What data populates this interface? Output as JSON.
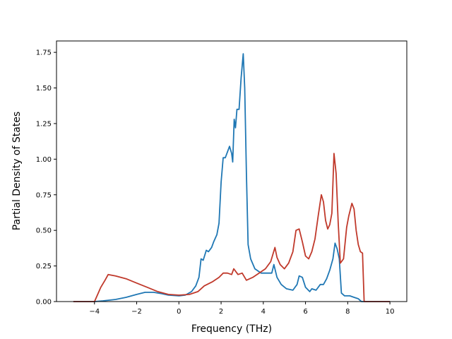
{
  "chart_data": {
    "type": "line",
    "xlabel": "Frequency (THz)",
    "ylabel": "Partial Density of States",
    "xlim": [
      -5.8,
      10.8
    ],
    "ylim": [
      0.0,
      1.83
    ],
    "x_ticks": [
      -4,
      -2,
      0,
      2,
      4,
      6,
      8,
      10
    ],
    "x_tick_labels": [
      "−4",
      "−2",
      "0",
      "2",
      "4",
      "6",
      "8",
      "10"
    ],
    "y_ticks": [
      0.0,
      0.25,
      0.5,
      0.75,
      1.0,
      1.25,
      1.5,
      1.75
    ],
    "y_tick_labels": [
      "0.00",
      "0.25",
      "0.50",
      "0.75",
      "1.00",
      "1.25",
      "1.50",
      "1.75"
    ],
    "grid": false,
    "series": [
      {
        "color": "#1f77b4",
        "points": [
          [
            -5.0,
            0.0
          ],
          [
            -4.0,
            0.0
          ],
          [
            -3.6,
            0.005
          ],
          [
            -3.0,
            0.015
          ],
          [
            -2.5,
            0.03
          ],
          [
            -2.0,
            0.05
          ],
          [
            -1.6,
            0.065
          ],
          [
            -1.2,
            0.065
          ],
          [
            -0.8,
            0.055
          ],
          [
            -0.5,
            0.045
          ],
          [
            0.0,
            0.04
          ],
          [
            0.3,
            0.045
          ],
          [
            0.6,
            0.07
          ],
          [
            0.8,
            0.11
          ],
          [
            0.95,
            0.17
          ],
          [
            1.05,
            0.3
          ],
          [
            1.15,
            0.29
          ],
          [
            1.3,
            0.36
          ],
          [
            1.4,
            0.35
          ],
          [
            1.55,
            0.38
          ],
          [
            1.65,
            0.42
          ],
          [
            1.8,
            0.47
          ],
          [
            1.9,
            0.55
          ],
          [
            2.0,
            0.84
          ],
          [
            2.1,
            1.01
          ],
          [
            2.2,
            1.01
          ],
          [
            2.3,
            1.05
          ],
          [
            2.4,
            1.09
          ],
          [
            2.5,
            1.04
          ],
          [
            2.55,
            0.98
          ],
          [
            2.62,
            1.28
          ],
          [
            2.68,
            1.22
          ],
          [
            2.75,
            1.35
          ],
          [
            2.85,
            1.35
          ],
          [
            2.95,
            1.57
          ],
          [
            3.05,
            1.74
          ],
          [
            3.12,
            1.5
          ],
          [
            3.2,
            0.9
          ],
          [
            3.28,
            0.4
          ],
          [
            3.4,
            0.3
          ],
          [
            3.6,
            0.23
          ],
          [
            3.9,
            0.2
          ],
          [
            4.2,
            0.2
          ],
          [
            4.4,
            0.2
          ],
          [
            4.5,
            0.26
          ],
          [
            4.65,
            0.17
          ],
          [
            4.85,
            0.12
          ],
          [
            5.1,
            0.09
          ],
          [
            5.4,
            0.08
          ],
          [
            5.6,
            0.12
          ],
          [
            5.7,
            0.18
          ],
          [
            5.85,
            0.17
          ],
          [
            6.0,
            0.1
          ],
          [
            6.2,
            0.07
          ],
          [
            6.3,
            0.09
          ],
          [
            6.5,
            0.08
          ],
          [
            6.7,
            0.12
          ],
          [
            6.85,
            0.12
          ],
          [
            7.0,
            0.16
          ],
          [
            7.15,
            0.22
          ],
          [
            7.3,
            0.3
          ],
          [
            7.4,
            0.41
          ],
          [
            7.5,
            0.37
          ],
          [
            7.6,
            0.3
          ],
          [
            7.7,
            0.06
          ],
          [
            7.85,
            0.04
          ],
          [
            8.1,
            0.04
          ],
          [
            8.3,
            0.03
          ],
          [
            8.5,
            0.02
          ],
          [
            8.65,
            0.0
          ],
          [
            10.0,
            0.0
          ]
        ]
      },
      {
        "color": "#c0392b",
        "points": [
          [
            -5.0,
            0.0
          ],
          [
            -4.0,
            0.0
          ],
          [
            -3.85,
            0.05
          ],
          [
            -3.7,
            0.1
          ],
          [
            -3.5,
            0.15
          ],
          [
            -3.35,
            0.19
          ],
          [
            -3.0,
            0.18
          ],
          [
            -2.5,
            0.16
          ],
          [
            -2.0,
            0.13
          ],
          [
            -1.5,
            0.1
          ],
          [
            -1.0,
            0.07
          ],
          [
            -0.5,
            0.05
          ],
          [
            0.0,
            0.045
          ],
          [
            0.5,
            0.05
          ],
          [
            0.9,
            0.07
          ],
          [
            1.2,
            0.11
          ],
          [
            1.6,
            0.14
          ],
          [
            1.9,
            0.17
          ],
          [
            2.1,
            0.2
          ],
          [
            2.3,
            0.2
          ],
          [
            2.5,
            0.19
          ],
          [
            2.6,
            0.23
          ],
          [
            2.8,
            0.19
          ],
          [
            3.0,
            0.2
          ],
          [
            3.2,
            0.15
          ],
          [
            3.5,
            0.17
          ],
          [
            3.8,
            0.2
          ],
          [
            4.1,
            0.23
          ],
          [
            4.35,
            0.28
          ],
          [
            4.55,
            0.38
          ],
          [
            4.65,
            0.31
          ],
          [
            4.8,
            0.26
          ],
          [
            5.0,
            0.23
          ],
          [
            5.2,
            0.27
          ],
          [
            5.4,
            0.35
          ],
          [
            5.55,
            0.5
          ],
          [
            5.7,
            0.51
          ],
          [
            5.85,
            0.42
          ],
          [
            6.0,
            0.32
          ],
          [
            6.15,
            0.3
          ],
          [
            6.3,
            0.35
          ],
          [
            6.45,
            0.44
          ],
          [
            6.6,
            0.6
          ],
          [
            6.75,
            0.75
          ],
          [
            6.85,
            0.7
          ],
          [
            6.95,
            0.57
          ],
          [
            7.05,
            0.51
          ],
          [
            7.15,
            0.54
          ],
          [
            7.25,
            0.62
          ],
          [
            7.35,
            1.04
          ],
          [
            7.45,
            0.9
          ],
          [
            7.55,
            0.55
          ],
          [
            7.65,
            0.27
          ],
          [
            7.8,
            0.3
          ],
          [
            7.95,
            0.52
          ],
          [
            8.05,
            0.6
          ],
          [
            8.2,
            0.69
          ],
          [
            8.3,
            0.65
          ],
          [
            8.4,
            0.5
          ],
          [
            8.5,
            0.4
          ],
          [
            8.6,
            0.35
          ],
          [
            8.7,
            0.34
          ],
          [
            8.78,
            0.0
          ],
          [
            10.0,
            0.0
          ]
        ]
      }
    ]
  }
}
